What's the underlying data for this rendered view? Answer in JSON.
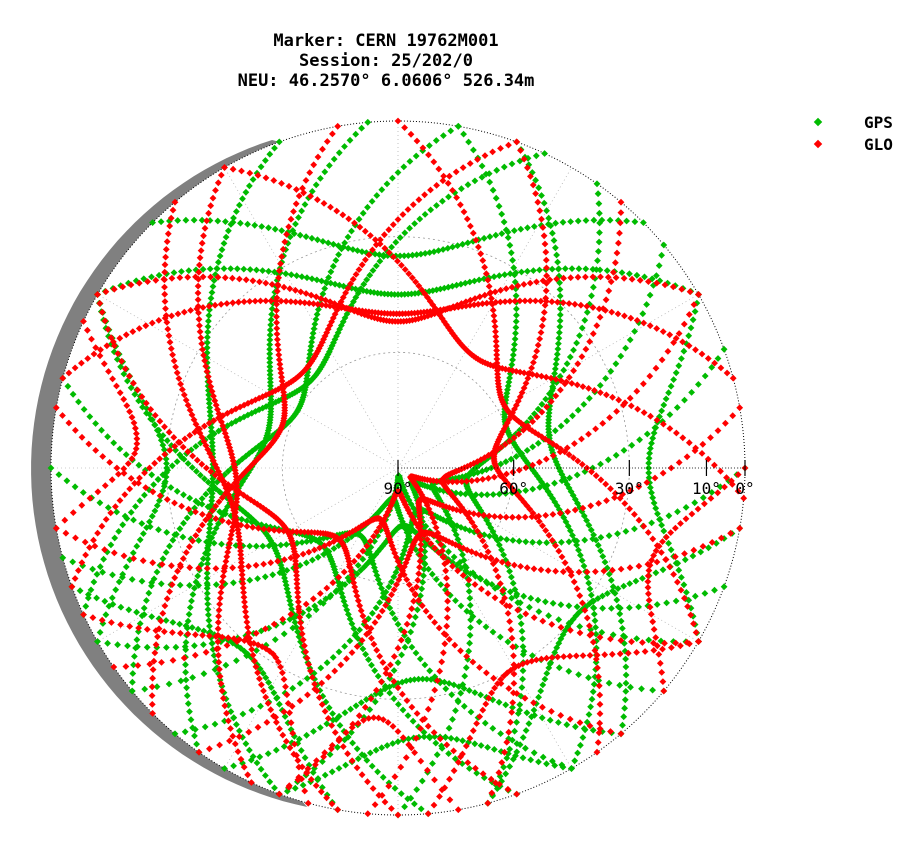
{
  "chart_data": {
    "type": "scatter",
    "subtype": "polar-skyplot",
    "title": "Marker: CERN 19762M001",
    "subtitle_lines": [
      "Session: 25/202/0",
      "NEU: 46.2570° 6.0606° 526.34m"
    ],
    "radial_axis": {
      "quantity": "elevation",
      "range": [
        90,
        0
      ],
      "ticks": [
        90,
        60,
        30,
        10,
        0
      ],
      "tick_labels": [
        "90°",
        "60°",
        "30°",
        "10°",
        "0°"
      ]
    },
    "angular_axis": {
      "quantity": "azimuth",
      "range": [
        0,
        360
      ],
      "north": "up",
      "direction": "clockwise"
    },
    "grid": true,
    "legend": {
      "position": "top-right",
      "entries": [
        "GPS",
        "GLO"
      ]
    },
    "colors": {
      "GPS": "#00bb00",
      "GLO": "#ff0000",
      "horizon_mask": "#808080",
      "grid": "#999999"
    },
    "obstruction": {
      "note_free": "",
      "azimuth_range_deg": [
        195,
        340
      ],
      "max_elevation_deg": 3
    },
    "north_gap": {
      "pole_of_visibility_elevation_deg": 59
    },
    "series": [
      {
        "name": "GPS",
        "tracks": [
          {
            "az_start": 200,
            "az_end": 340,
            "max_el": 42,
            "peak_az": 270
          },
          {
            "az_start": 215,
            "az_end": 355,
            "max_el": 55,
            "peak_az": 285
          },
          {
            "az_start": 230,
            "az_end": 10,
            "max_el": 60,
            "peak_az": 300
          },
          {
            "az_start": 245,
            "az_end": 25,
            "max_el": 58,
            "peak_az": 315
          },
          {
            "az_start": 20,
            "az_end": 140,
            "max_el": 50,
            "peak_az": 80
          },
          {
            "az_start": 10,
            "az_end": 150,
            "max_el": 60,
            "peak_az": 70
          },
          {
            "az_start": 35,
            "az_end": 165,
            "max_el": 72,
            "peak_az": 100
          },
          {
            "az_start": 50,
            "az_end": 180,
            "max_el": 80,
            "peak_az": 115
          },
          {
            "az_start": 70,
            "az_end": 200,
            "max_el": 85,
            "peak_az": 135
          },
          {
            "az_start": 90,
            "az_end": 220,
            "max_el": 78,
            "peak_az": 155
          },
          {
            "az_start": 110,
            "az_end": 240,
            "max_el": 75,
            "peak_az": 175
          },
          {
            "az_start": 130,
            "az_end": 255,
            "max_el": 82,
            "peak_az": 190
          },
          {
            "az_start": 150,
            "az_end": 270,
            "max_el": 70,
            "peak_az": 210
          },
          {
            "az_start": 160,
            "az_end": 285,
            "max_el": 62,
            "peak_az": 225
          },
          {
            "az_start": 175,
            "az_end": 300,
            "max_el": 52,
            "peak_az": 240
          },
          {
            "az_start": 140,
            "az_end": 210,
            "max_el": 35,
            "peak_az": 175
          },
          {
            "az_start": 150,
            "az_end": 200,
            "max_el": 20,
            "peak_az": 175
          },
          {
            "az_start": 100,
            "az_end": 165,
            "max_el": 30,
            "peak_az": 130
          },
          {
            "az_start": 190,
            "az_end": 250,
            "max_el": 28,
            "peak_az": 220
          },
          {
            "az_start": 300,
            "az_end": 60,
            "max_el": 45,
            "peak_az": 0
          },
          {
            "az_start": 315,
            "az_end": 45,
            "max_el": 35,
            "peak_az": 0
          },
          {
            "az_start": 60,
            "az_end": 120,
            "max_el": 25,
            "peak_az": 90
          },
          {
            "az_start": 240,
            "az_end": 300,
            "max_el": 30,
            "peak_az": 270
          },
          {
            "az_start": 120,
            "az_end": 230,
            "max_el": 88,
            "peak_az": 175
          }
        ]
      },
      {
        "name": "GLO",
        "tracks": [
          {
            "az_start": 205,
            "az_end": 330,
            "max_el": 48,
            "peak_az": 265
          },
          {
            "az_start": 225,
            "az_end": 350,
            "max_el": 58,
            "peak_az": 290
          },
          {
            "az_start": 250,
            "az_end": 20,
            "max_el": 55,
            "peak_az": 315
          },
          {
            "az_start": 285,
            "az_end": 75,
            "max_el": 50,
            "peak_az": 0
          },
          {
            "az_start": 300,
            "az_end": 60,
            "max_el": 52,
            "peak_az": 0
          },
          {
            "az_start": 330,
            "az_end": 95,
            "max_el": 55,
            "peak_az": 35
          },
          {
            "az_start": 0,
            "az_end": 120,
            "max_el": 58,
            "peak_az": 60
          },
          {
            "az_start": 20,
            "az_end": 145,
            "max_el": 65,
            "peak_az": 85
          },
          {
            "az_start": 40,
            "az_end": 165,
            "max_el": 78,
            "peak_az": 105
          },
          {
            "az_start": 60,
            "az_end": 185,
            "max_el": 86,
            "peak_az": 125
          },
          {
            "az_start": 80,
            "az_end": 200,
            "max_el": 80,
            "peak_az": 145
          },
          {
            "az_start": 100,
            "az_end": 215,
            "max_el": 72,
            "peak_az": 160
          },
          {
            "az_start": 120,
            "az_end": 235,
            "max_el": 84,
            "peak_az": 180
          },
          {
            "az_start": 140,
            "az_end": 260,
            "max_el": 76,
            "peak_az": 200
          },
          {
            "az_start": 160,
            "az_end": 280,
            "max_el": 66,
            "peak_az": 220
          },
          {
            "az_start": 180,
            "az_end": 300,
            "max_el": 57,
            "peak_az": 240
          },
          {
            "az_start": 190,
            "az_end": 320,
            "max_el": 46,
            "peak_az": 255
          },
          {
            "az_start": 170,
            "az_end": 200,
            "max_el": 25,
            "peak_az": 185
          },
          {
            "az_start": 120,
            "az_end": 175,
            "max_el": 30,
            "peak_az": 150
          },
          {
            "az_start": 195,
            "az_end": 245,
            "max_el": 32,
            "peak_az": 215
          },
          {
            "az_start": 90,
            "az_end": 130,
            "max_el": 20,
            "peak_az": 110
          },
          {
            "az_start": 260,
            "az_end": 295,
            "max_el": 22,
            "peak_az": 275
          }
        ]
      }
    ]
  }
}
